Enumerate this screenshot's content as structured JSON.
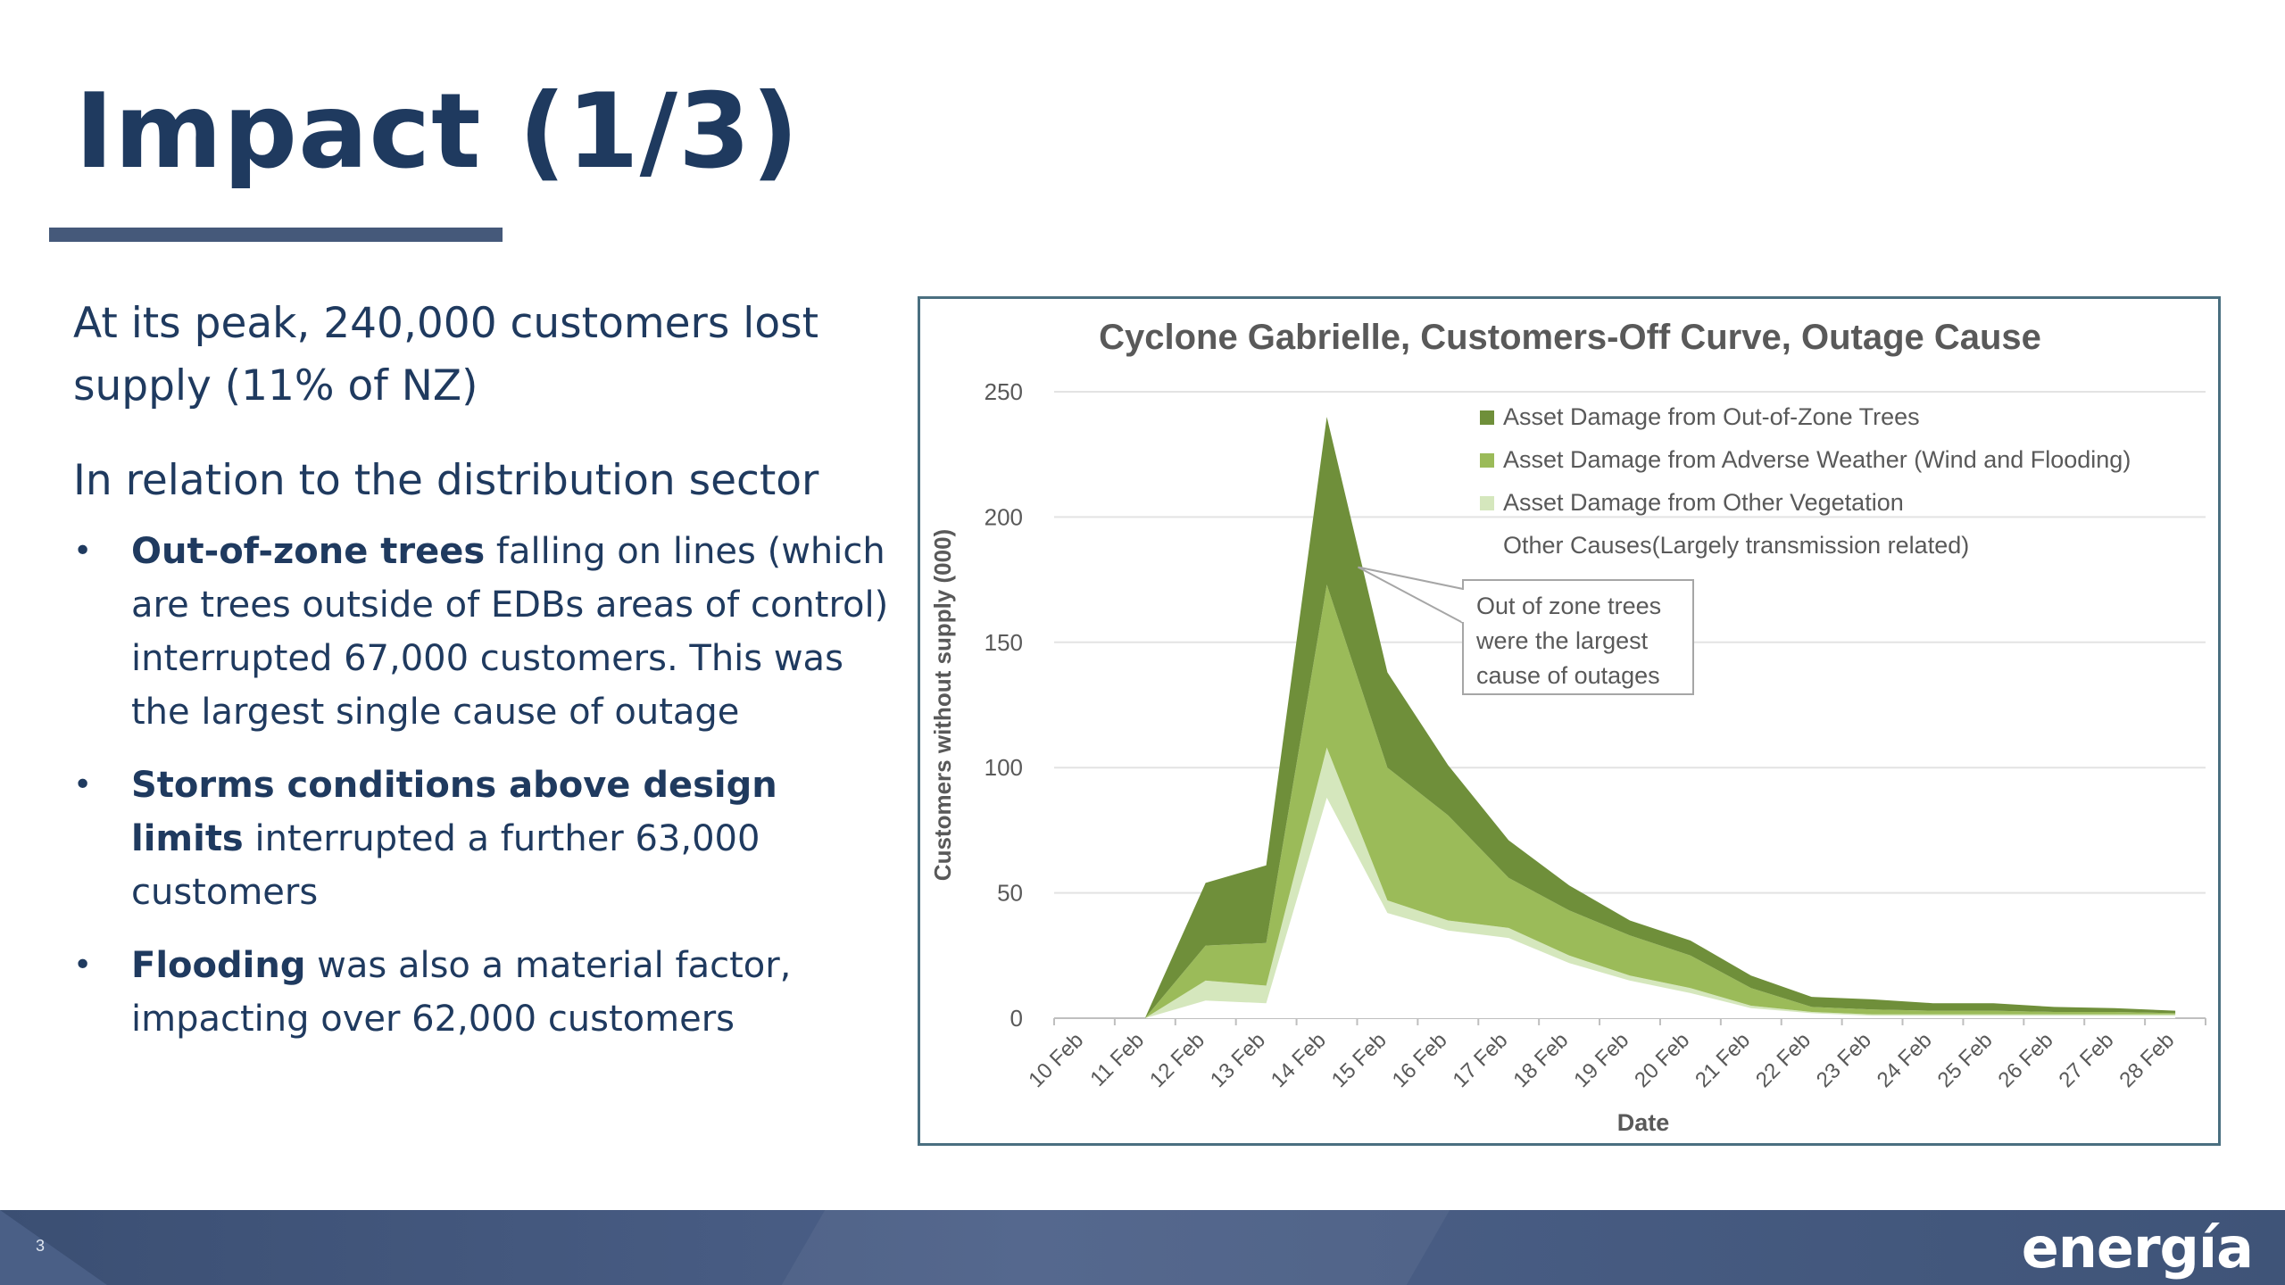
{
  "slide": {
    "title": "Impact (1/3)",
    "page_number": "3",
    "logo_text": "energía"
  },
  "left": {
    "lead1": "At its peak, 240,000 customers lost supply (11% of NZ)",
    "lead2": "In relation to the distribution sector",
    "bullets": [
      {
        "bold": "Out-of-zone trees",
        "text": " falling on lines (which are trees outside of EDBs areas of control) interrupted 67,000 customers. This was the largest single cause of outage"
      },
      {
        "bold": "Storms conditions above design limits",
        "text": " interrupted a further 63,000 customers"
      },
      {
        "bold": "Flooding",
        "text": " was also a material factor, impacting over 62,000 customers"
      }
    ],
    "bullet_glyph": "•"
  },
  "chart_data": {
    "type": "area",
    "stacked": true,
    "title": "Cyclone Gabrielle, Customers-Off Curve, Outage Cause",
    "xlabel": "Date",
    "ylabel": "Customers without supply (000)",
    "ylim": [
      0,
      250
    ],
    "yticks": [
      0,
      50,
      100,
      150,
      200,
      250
    ],
    "grid": true,
    "legend_position": "top-right",
    "categories": [
      "10 Feb",
      "11 Feb",
      "12 Feb",
      "13 Feb",
      "14 Feb",
      "15 Feb",
      "16 Feb",
      "17 Feb",
      "18 Feb",
      "19 Feb",
      "20 Feb",
      "21 Feb",
      "22 Feb",
      "23 Feb",
      "24 Feb",
      "25 Feb",
      "26 Feb",
      "27 Feb",
      "28 Feb"
    ],
    "series": [
      {
        "name": "Other Causes(Largely transmission related)",
        "color": "#ffffff",
        "values": [
          null,
          0,
          7,
          6,
          88,
          42,
          35,
          32,
          22,
          15,
          10,
          4,
          2,
          1,
          1,
          1,
          1,
          1,
          1
        ]
      },
      {
        "name": "Asset Damage from Other Vegetation",
        "color": "#d5e7bd",
        "values": [
          null,
          0,
          8,
          7,
          20,
          5,
          4,
          4,
          3,
          2,
          2,
          1,
          0.5,
          0.5,
          0.5,
          0.5,
          0.5,
          0.5,
          0.5
        ]
      },
      {
        "name": "Asset Damage from Adverse Weather (Wind and Flooding)",
        "color": "#9bbb59",
        "values": [
          null,
          0,
          14,
          17,
          65,
          53,
          42,
          20,
          18,
          16,
          13,
          7,
          2,
          2,
          1.5,
          1.5,
          1,
          1,
          0.5
        ]
      },
      {
        "name": "Asset Damage from Out-of-Zone Trees",
        "color": "#6f8f3a",
        "values": [
          null,
          0,
          25,
          31,
          67,
          38,
          20,
          15,
          10,
          6,
          6,
          5,
          4,
          4,
          3,
          3,
          2,
          1.5,
          1
        ]
      }
    ],
    "legend_order": [
      "Asset Damage from Out-of-Zone Trees",
      "Asset Damage from Adverse Weather (Wind and Flooding)",
      "Asset Damage from Other Vegetation",
      "Other Causes(Largely transmission related)"
    ],
    "annotation": {
      "text_lines": [
        "Out of zone trees",
        "were the largest",
        "cause of outages"
      ],
      "target_category": "14 Feb",
      "target_value": 180
    }
  }
}
